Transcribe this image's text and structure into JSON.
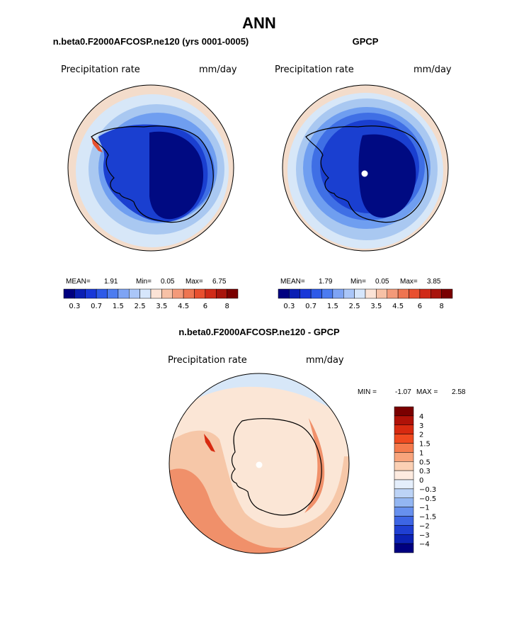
{
  "title": "ANN",
  "colors": {
    "ocean_light": "#f3dccb",
    "ring1": "#d7e7f8",
    "ring2": "#a9c8f1",
    "ring3": "#6f9ef0",
    "ring4": "#3f6fe5",
    "ring5": "#1a3fd0",
    "deep": "#000a82",
    "coast": "#000000",
    "diff_warm": "#f6c7a8",
    "diff_hot": "#f0906a",
    "diff_pale": "#fbe6d6"
  },
  "chart_data": [
    {
      "type": "heatmap",
      "projection": "south-polar-stereographic",
      "panel_title": "n.beta0.F2000AFCOSP.ne120 (yrs 0001-0005)",
      "variable": "Precipitation rate",
      "units": "mm/day",
      "stats": {
        "mean_label": "MEAN=",
        "mean": "1.91",
        "min_label": "Min=",
        "min": "0.05",
        "max_label": "Max=",
        "max": "6.75"
      },
      "colorbar": {
        "orientation": "horizontal",
        "levels": [
          0.2,
          0.3,
          0.5,
          0.7,
          1,
          1.5,
          2,
          2.5,
          3,
          3.5,
          4,
          4.5,
          5,
          6,
          7,
          8
        ],
        "tick_labels": [
          "0.3",
          "0.7",
          "1.5",
          "2.5",
          "3.5",
          "4.5",
          "6",
          "8"
        ],
        "colors": [
          "#000080",
          "#0a1fb4",
          "#1838d8",
          "#2d5ae8",
          "#4c7cf0",
          "#7ea4f4",
          "#aac6f8",
          "#d6e6fb",
          "#fbe3d6",
          "#f7c1a6",
          "#f39a7a",
          "#ee7551",
          "#e8502f",
          "#d02b18",
          "#a8140c",
          "#7a0000"
        ]
      }
    },
    {
      "type": "heatmap",
      "projection": "south-polar-stereographic",
      "panel_title": "GPCP",
      "variable": "Precipitation rate",
      "units": "mm/day",
      "stats": {
        "mean_label": "MEAN=",
        "mean": "1.79",
        "min_label": "Min=",
        "min": "0.05",
        "max_label": "Max=",
        "max": "3.85"
      },
      "colorbar": {
        "orientation": "horizontal",
        "levels": [
          0.2,
          0.3,
          0.5,
          0.7,
          1,
          1.5,
          2,
          2.5,
          3,
          3.5,
          4,
          4.5,
          5,
          6,
          7,
          8
        ],
        "tick_labels": [
          "0.3",
          "0.7",
          "1.5",
          "2.5",
          "3.5",
          "4.5",
          "6",
          "8"
        ],
        "colors": [
          "#000080",
          "#0a1fb4",
          "#1838d8",
          "#2d5ae8",
          "#4c7cf0",
          "#7ea4f4",
          "#aac6f8",
          "#d6e6fb",
          "#fbe3d6",
          "#f7c1a6",
          "#f39a7a",
          "#ee7551",
          "#e8502f",
          "#d02b18",
          "#a8140c",
          "#7a0000"
        ]
      }
    },
    {
      "type": "heatmap",
      "projection": "south-polar-stereographic",
      "panel_title": "n.beta0.F2000AFCOSP.ne120 - GPCP",
      "variable": "Precipitation rate",
      "units": "mm/day",
      "stats": {
        "min_label": "MIN =",
        "min": "-1.07",
        "max_label": "MAX =",
        "max": "2.58"
      },
      "colorbar": {
        "orientation": "vertical",
        "tick_labels": [
          "4",
          "3",
          "2",
          "1.5",
          "1",
          "0.5",
          "0.3",
          "0",
          "-0.3",
          "-0.5",
          "-1",
          "-1.5",
          "-2",
          "-3",
          "-4"
        ],
        "colors": [
          "#7a0000",
          "#b01208",
          "#d82a10",
          "#f04a20",
          "#f57a4c",
          "#f8a47c",
          "#fbd0b4",
          "#fdebe0",
          "#e4eefb",
          "#bcd3f6",
          "#93b6f2",
          "#6790ee",
          "#3d65e4",
          "#1f3fd2",
          "#0c22b4",
          "#000080"
        ]
      }
    }
  ]
}
